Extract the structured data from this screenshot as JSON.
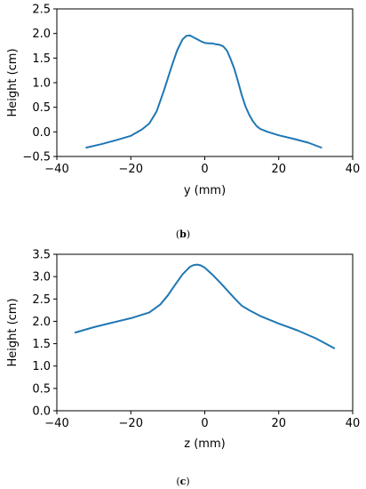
{
  "chart_data": [
    {
      "type": "line",
      "caption_open": "(",
      "caption_letter": "b",
      "caption_close": ")",
      "xlabel": "y (mm)",
      "ylabel": "Height (cm)",
      "xlim": [
        -40,
        40
      ],
      "ylim": [
        -0.5,
        2.5
      ],
      "xticks": [
        -40,
        -20,
        0,
        20,
        40
      ],
      "yticks": [
        -0.5,
        0.0,
        0.5,
        1.0,
        1.5,
        2.0,
        2.5
      ],
      "xtick_labels": [
        "−40",
        "−20",
        "0",
        "20",
        "40"
      ],
      "ytick_labels": [
        "−0.5",
        "0.0",
        "0.5",
        "1.0",
        "1.5",
        "2.0",
        "2.5"
      ],
      "grid": false,
      "color": "#1f77b4",
      "series": [
        {
          "x": [
            -32,
            -28,
            -24,
            -20,
            -17,
            -15,
            -13,
            -11,
            -9,
            -7.5,
            -6,
            -5,
            -4,
            -3,
            -2,
            -1,
            0,
            1,
            2,
            3,
            4,
            5,
            6,
            7,
            8,
            9,
            10,
            11,
            12,
            13,
            14,
            15,
            17,
            20,
            24,
            28,
            31.5
          ],
          "y": [
            -0.32,
            -0.25,
            -0.17,
            -0.08,
            0.05,
            0.17,
            0.42,
            0.85,
            1.32,
            1.65,
            1.88,
            1.95,
            1.96,
            1.92,
            1.88,
            1.84,
            1.81,
            1.8,
            1.8,
            1.78,
            1.77,
            1.74,
            1.65,
            1.48,
            1.28,
            1.02,
            0.75,
            0.52,
            0.35,
            0.22,
            0.12,
            0.06,
            0.0,
            -0.07,
            -0.14,
            -0.22,
            -0.32
          ]
        }
      ]
    },
    {
      "type": "line",
      "caption_open": "(",
      "caption_letter": "c",
      "caption_close": ")",
      "xlabel": "z (mm)",
      "ylabel": "Height (cm)",
      "xlim": [
        -40,
        40
      ],
      "ylim": [
        0.0,
        3.5
      ],
      "xticks": [
        -40,
        -20,
        0,
        20,
        40
      ],
      "yticks": [
        0.0,
        0.5,
        1.0,
        1.5,
        2.0,
        2.5,
        3.0,
        3.5
      ],
      "xtick_labels": [
        "−40",
        "−20",
        "0",
        "20",
        "40"
      ],
      "ytick_labels": [
        "0.0",
        "0.5",
        "1.0",
        "1.5",
        "2.0",
        "2.5",
        "3.0",
        "3.5"
      ],
      "grid": false,
      "color": "#1f77b4",
      "series": [
        {
          "x": [
            -35,
            -30,
            -25,
            -20,
            -15,
            -12,
            -10,
            -8,
            -6,
            -4,
            -3,
            -2,
            -1,
            0,
            2,
            4,
            6,
            8,
            10,
            12,
            15,
            20,
            25,
            30,
            35
          ],
          "y": [
            1.75,
            1.87,
            1.97,
            2.07,
            2.2,
            2.38,
            2.58,
            2.82,
            3.05,
            3.22,
            3.26,
            3.27,
            3.25,
            3.2,
            3.05,
            2.88,
            2.7,
            2.52,
            2.35,
            2.25,
            2.12,
            1.95,
            1.8,
            1.62,
            1.4
          ]
        }
      ]
    }
  ]
}
